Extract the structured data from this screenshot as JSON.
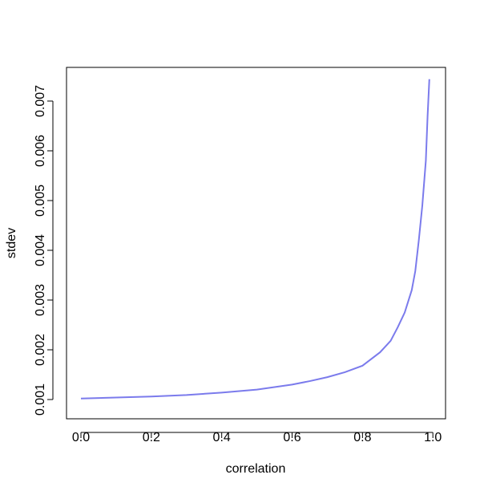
{
  "chart_data": {
    "type": "line",
    "x_label": "correlation",
    "y_label": "stdev",
    "x": [
      0,
      0.1,
      0.2,
      0.3,
      0.4,
      0.5,
      0.6,
      0.65,
      0.7,
      0.75,
      0.8,
      0.85,
      0.88,
      0.9,
      0.92,
      0.94,
      0.95,
      0.96,
      0.97,
      0.98,
      0.985,
      0.99
    ],
    "series": [
      {
        "color": "#7b7bec",
        "values": [
          0.00102,
          0.00104,
          0.00106,
          0.00109,
          0.00114,
          0.0012,
          0.0013,
          0.00137,
          0.00145,
          0.00155,
          0.00168,
          0.00195,
          0.00218,
          0.00245,
          0.00275,
          0.0032,
          0.00358,
          0.0042,
          0.0049,
          0.0058,
          0.0067,
          0.00744
        ]
      }
    ],
    "xlim": [
      -0.041,
      1.036
    ],
    "ylim": [
      0.000613,
      0.007677
    ],
    "xticks": [
      {
        "value": 0,
        "label": "0.0"
      },
      0.2,
      0.4,
      0.6,
      0.8,
      {
        "value": 1,
        "label": "1.0"
      }
    ],
    "yticks": [
      0.001,
      0.002,
      0.003,
      0.004,
      0.005,
      0.006,
      0.007
    ]
  }
}
